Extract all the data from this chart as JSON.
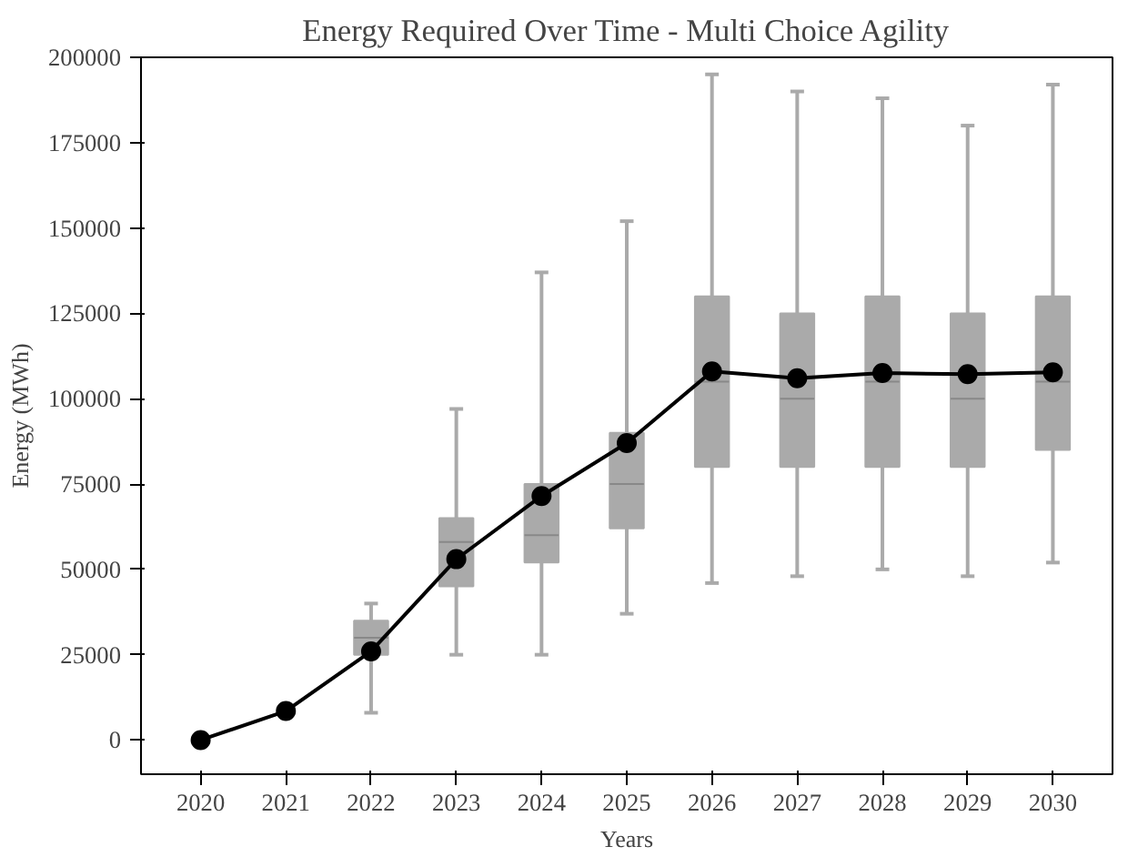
{
  "chart_data": {
    "type": "line",
    "title": "Energy Required Over Time - Multi Choice Agility",
    "xlabel": "Years",
    "ylabel": "Energy (MWh)",
    "categories": [
      "2020",
      "2021",
      "2022",
      "2023",
      "2024",
      "2025",
      "2026",
      "2027",
      "2028",
      "2029",
      "2030"
    ],
    "ylim": [
      -10000,
      200000
    ],
    "yticks": [
      0,
      25000,
      50000,
      75000,
      100000,
      125000,
      150000,
      175000,
      200000
    ],
    "grid": false,
    "marker": "circle",
    "line_style": "solid",
    "series": [
      {
        "type": "box",
        "color": "#aaaaaa",
        "boxes": [
          null,
          null,
          {
            "low": 8000,
            "q1": 25000,
            "median": 30000,
            "q3": 35000,
            "high": 40000
          },
          {
            "low": 25000,
            "q1": 45000,
            "median": 58000,
            "q3": 65000,
            "high": 97000
          },
          {
            "low": 25000,
            "q1": 52000,
            "median": 60000,
            "q3": 75000,
            "high": 137000
          },
          {
            "low": 37000,
            "q1": 62000,
            "median": 75000,
            "q3": 90000,
            "high": 152000
          },
          {
            "low": 46000,
            "q1": 80000,
            "median": 105000,
            "q3": 130000,
            "high": 195000
          },
          {
            "low": 48000,
            "q1": 80000,
            "median": 100000,
            "q3": 125000,
            "high": 190000
          },
          {
            "low": 50000,
            "q1": 80000,
            "median": 105000,
            "q3": 130000,
            "high": 188000
          },
          {
            "low": 48000,
            "q1": 80000,
            "median": 100000,
            "q3": 125000,
            "high": 180000
          },
          {
            "low": 52000,
            "q1": 85000,
            "median": 105000,
            "q3": 130000,
            "high": 192000
          }
        ]
      },
      {
        "color": "#000000",
        "values": [
          0,
          8500,
          26000,
          53000,
          71500,
          87000,
          108000,
          106000,
          107500,
          107200,
          107700
        ]
      }
    ]
  }
}
